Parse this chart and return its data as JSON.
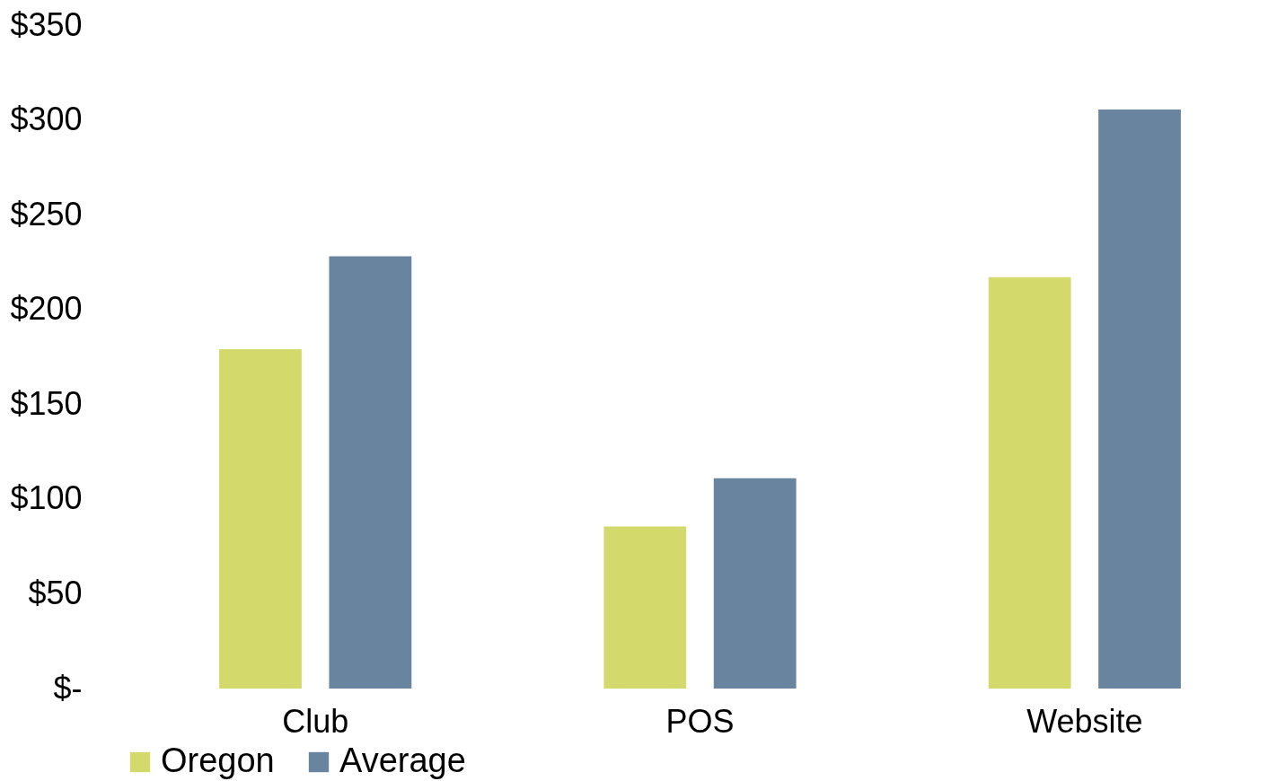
{
  "chart_data": {
    "type": "bar",
    "categories": [
      "Club",
      "POS",
      "Website"
    ],
    "series": [
      {
        "name": "Oregon",
        "color": "#d4d96c",
        "values": [
          179,
          85.5,
          217
        ]
      },
      {
        "name": "Average",
        "color": "#69849e",
        "values": [
          228,
          111,
          305.5
        ]
      }
    ],
    "ylim": [
      0,
      350
    ],
    "yticks": [
      {
        "value": 0,
        "label": "$-"
      },
      {
        "value": 50,
        "label": "$50"
      },
      {
        "value": 100,
        "label": "$100"
      },
      {
        "value": 150,
        "label": "$150"
      },
      {
        "value": 200,
        "label": "$200"
      },
      {
        "value": 250,
        "label": "$250"
      },
      {
        "value": 300,
        "label": "$300"
      },
      {
        "value": 350,
        "label": "$350"
      }
    ],
    "grid": false,
    "legend": "bottom"
  }
}
